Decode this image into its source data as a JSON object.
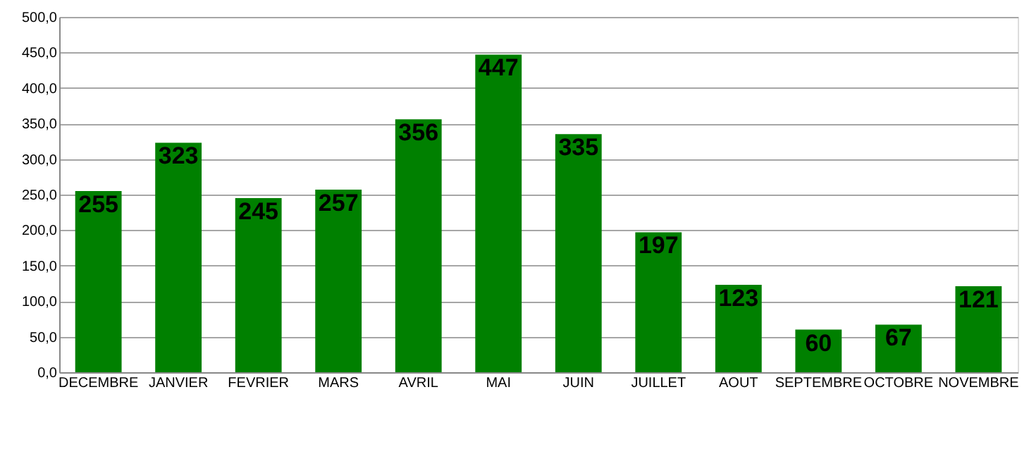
{
  "chart_data": {
    "type": "bar",
    "categories": [
      "DECEMBRE",
      "JANVIER",
      "FEVRIER",
      "MARS",
      "AVRIL",
      "MAI",
      "JUIN",
      "JUILLET",
      "AOUT",
      "SEPTEMBRE",
      "OCTOBRE",
      "NOVEMBRE"
    ],
    "values": [
      255,
      323,
      245,
      257,
      356,
      447,
      335,
      197,
      123,
      60,
      67,
      121
    ],
    "color": "#008000",
    "ylim": [
      0,
      500
    ],
    "yticks": [
      {
        "value": 0,
        "label": "0,0"
      },
      {
        "value": 50,
        "label": "50,0"
      },
      {
        "value": 100,
        "label": "100,0"
      },
      {
        "value": 150,
        "label": "150,0"
      },
      {
        "value": 200,
        "label": "200,0"
      },
      {
        "value": 250,
        "label": "250,0"
      },
      {
        "value": 300,
        "label": "300,0"
      },
      {
        "value": 350,
        "label": "350,0"
      },
      {
        "value": 400,
        "label": "400,0"
      },
      {
        "value": 450,
        "label": "450,0"
      },
      {
        "value": 500,
        "label": "500,0"
      }
    ],
    "grid": "y",
    "data_labels": true
  }
}
